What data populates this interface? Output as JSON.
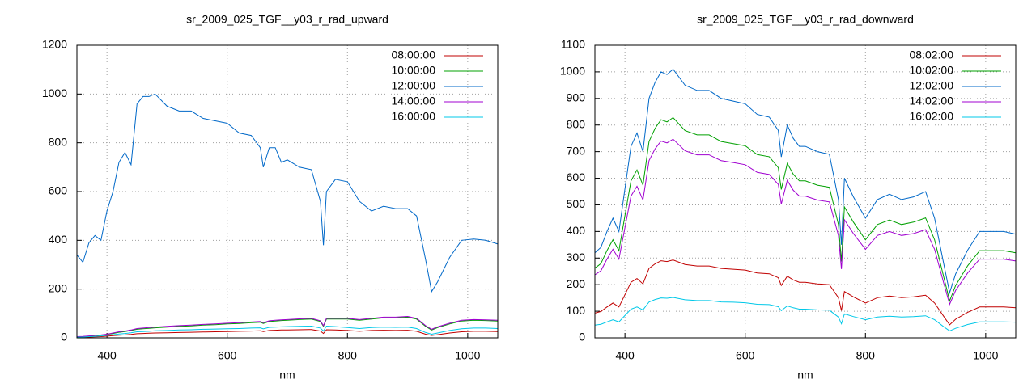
{
  "chart_data": [
    {
      "type": "line",
      "title": "sr_2009_025_TGF__y03_r_rad_upward",
      "xlabel": "nm",
      "x": [
        350,
        360,
        370,
        380,
        390,
        400,
        410,
        420,
        430,
        440,
        450,
        460,
        470,
        480,
        500,
        520,
        540,
        560,
        580,
        600,
        620,
        640,
        655,
        660,
        670,
        680,
        690,
        700,
        720,
        740,
        755,
        760,
        765,
        780,
        800,
        820,
        840,
        860,
        880,
        900,
        915,
        930,
        940,
        950,
        970,
        990,
        1010,
        1030,
        1050
      ],
      "series": [
        {
          "name": "08:00:00",
          "color": "#c00000",
          "values": [
            2,
            2,
            3,
            4,
            5,
            7,
            9,
            11,
            12,
            14,
            17,
            18,
            19,
            20,
            21,
            22,
            23,
            24,
            25,
            26,
            27,
            28,
            29,
            26,
            30,
            31,
            32,
            32,
            33,
            34,
            28,
            18,
            33,
            32,
            30,
            27,
            30,
            31,
            30,
            31,
            27,
            15,
            10,
            13,
            20,
            25,
            27,
            27,
            26
          ]
        },
        {
          "name": "10:00:00",
          "color": "#00a000",
          "values": [
            4,
            5,
            7,
            9,
            11,
            14,
            18,
            23,
            26,
            30,
            35,
            37,
            39,
            41,
            44,
            47,
            49,
            52,
            54,
            57,
            59,
            62,
            64,
            59,
            67,
            69,
            71,
            72,
            75,
            77,
            67,
            47,
            77,
            77,
            77,
            72,
            77,
            82,
            82,
            85,
            77,
            47,
            32,
            42,
            57,
            69,
            72,
            71,
            69
          ]
        },
        {
          "name": "12:00:00",
          "color": "#0068c8",
          "values": [
            340,
            310,
            390,
            420,
            400,
            520,
            600,
            720,
            760,
            710,
            960,
            990,
            990,
            1000,
            950,
            930,
            930,
            900,
            890,
            880,
            840,
            830,
            780,
            700,
            780,
            780,
            720,
            730,
            700,
            690,
            560,
            380,
            600,
            650,
            640,
            560,
            520,
            540,
            530,
            530,
            500,
            320,
            190,
            230,
            330,
            400,
            405,
            400,
            385
          ]
        },
        {
          "name": "14:00:00",
          "color": "#a000d0",
          "values": [
            5,
            6,
            8,
            10,
            12,
            15,
            20,
            25,
            28,
            32,
            38,
            40,
            42,
            44,
            47,
            50,
            52,
            55,
            57,
            60,
            62,
            65,
            67,
            62,
            70,
            72,
            74,
            75,
            78,
            80,
            70,
            50,
            80,
            80,
            80,
            75,
            80,
            85,
            85,
            88,
            80,
            50,
            35,
            45,
            60,
            72,
            75,
            74,
            72
          ]
        },
        {
          "name": "16:00:00",
          "color": "#00c8e8",
          "values": [
            3,
            3,
            5,
            6,
            8,
            10,
            13,
            16,
            18,
            21,
            25,
            26,
            27,
            29,
            30,
            32,
            33,
            35,
            36,
            37,
            38,
            40,
            41,
            37,
            43,
            44,
            45,
            46,
            47,
            48,
            40,
            28,
            48,
            46,
            42,
            38,
            42,
            44,
            43,
            44,
            38,
            22,
            15,
            20,
            30,
            37,
            40,
            40,
            38
          ]
        }
      ],
      "xlim": [
        350,
        1050
      ],
      "ylim": [
        0,
        1200
      ],
      "xticks": [
        400,
        600,
        800,
        1000
      ],
      "yticks": [
        0,
        200,
        400,
        600,
        800,
        1000,
        1200
      ],
      "grid": true,
      "legend": "top-right"
    },
    {
      "type": "line",
      "title": "sr_2009_025_TGF__y03_r_rad_downward",
      "xlabel": "nm",
      "x": [
        350,
        360,
        370,
        380,
        390,
        400,
        410,
        420,
        430,
        440,
        450,
        460,
        470,
        480,
        500,
        520,
        540,
        560,
        580,
        600,
        620,
        640,
        655,
        660,
        670,
        680,
        690,
        700,
        720,
        740,
        755,
        760,
        765,
        780,
        800,
        820,
        840,
        860,
        880,
        900,
        915,
        930,
        940,
        950,
        970,
        990,
        1010,
        1030,
        1050
      ],
      "series": [
        {
          "name": "08:02:00",
          "color": "#c00000",
          "values": [
            93,
            99,
            116,
            131,
            116,
            162,
            209,
            223,
            203,
            261,
            278,
            290,
            287,
            293,
            276,
            270,
            270,
            261,
            258,
            255,
            244,
            241,
            226,
            197,
            232,
            218,
            209,
            209,
            203,
            200,
            151,
            102,
            174,
            154,
            131,
            151,
            157,
            151,
            154,
            160,
            131,
            81,
            49,
            70,
            96,
            116,
            116,
            116,
            113
          ]
        },
        {
          "name": "10:02:00",
          "color": "#00a000",
          "values": [
            262,
            279,
            328,
            369,
            328,
            459,
            590,
            631,
            574,
            738,
            787,
            820,
            812,
            828,
            779,
            763,
            763,
            738,
            730,
            722,
            689,
            681,
            640,
            558,
            656,
            615,
            590,
            590,
            574,
            566,
            426,
            287,
            492,
            435,
            369,
            426,
            443,
            426,
            435,
            451,
            369,
            230,
            139,
            197,
            271,
            328,
            328,
            328,
            320
          ]
        },
        {
          "name": "12:02:00",
          "color": "#0068c8",
          "values": [
            320,
            340,
            400,
            450,
            400,
            560,
            720,
            770,
            700,
            900,
            960,
            1000,
            990,
            1010,
            950,
            930,
            930,
            900,
            890,
            880,
            840,
            830,
            780,
            680,
            800,
            750,
            720,
            720,
            700,
            690,
            520,
            350,
            600,
            530,
            450,
            520,
            540,
            520,
            530,
            550,
            450,
            280,
            170,
            240,
            330,
            400,
            400,
            400,
            390
          ]
        },
        {
          "name": "14:02:00",
          "color": "#a000d0",
          "values": [
            237,
            252,
            296,
            333,
            296,
            414,
            533,
            570,
            518,
            666,
            710,
            740,
            733,
            747,
            703,
            688,
            688,
            666,
            659,
            651,
            622,
            614,
            577,
            503,
            592,
            555,
            533,
            533,
            518,
            511,
            385,
            259,
            444,
            392,
            333,
            385,
            400,
            385,
            392,
            407,
            333,
            207,
            126,
            178,
            244,
            296,
            296,
            296,
            289
          ]
        },
        {
          "name": "16:02:00",
          "color": "#00c8e8",
          "values": [
            48,
            51,
            60,
            68,
            60,
            84,
            108,
            116,
            105,
            135,
            144,
            150,
            149,
            152,
            143,
            140,
            140,
            135,
            134,
            132,
            126,
            125,
            117,
            102,
            120,
            113,
            108,
            108,
            105,
            104,
            78,
            53,
            90,
            80,
            68,
            78,
            81,
            78,
            80,
            83,
            68,
            42,
            26,
            36,
            50,
            60,
            60,
            60,
            59
          ]
        }
      ],
      "xlim": [
        350,
        1050
      ],
      "ylim": [
        0,
        1100
      ],
      "xticks": [
        400,
        600,
        800,
        1000
      ],
      "yticks": [
        0,
        100,
        200,
        300,
        400,
        500,
        600,
        700,
        800,
        900,
        1000,
        1100
      ],
      "grid": true,
      "legend": "top-right"
    }
  ]
}
